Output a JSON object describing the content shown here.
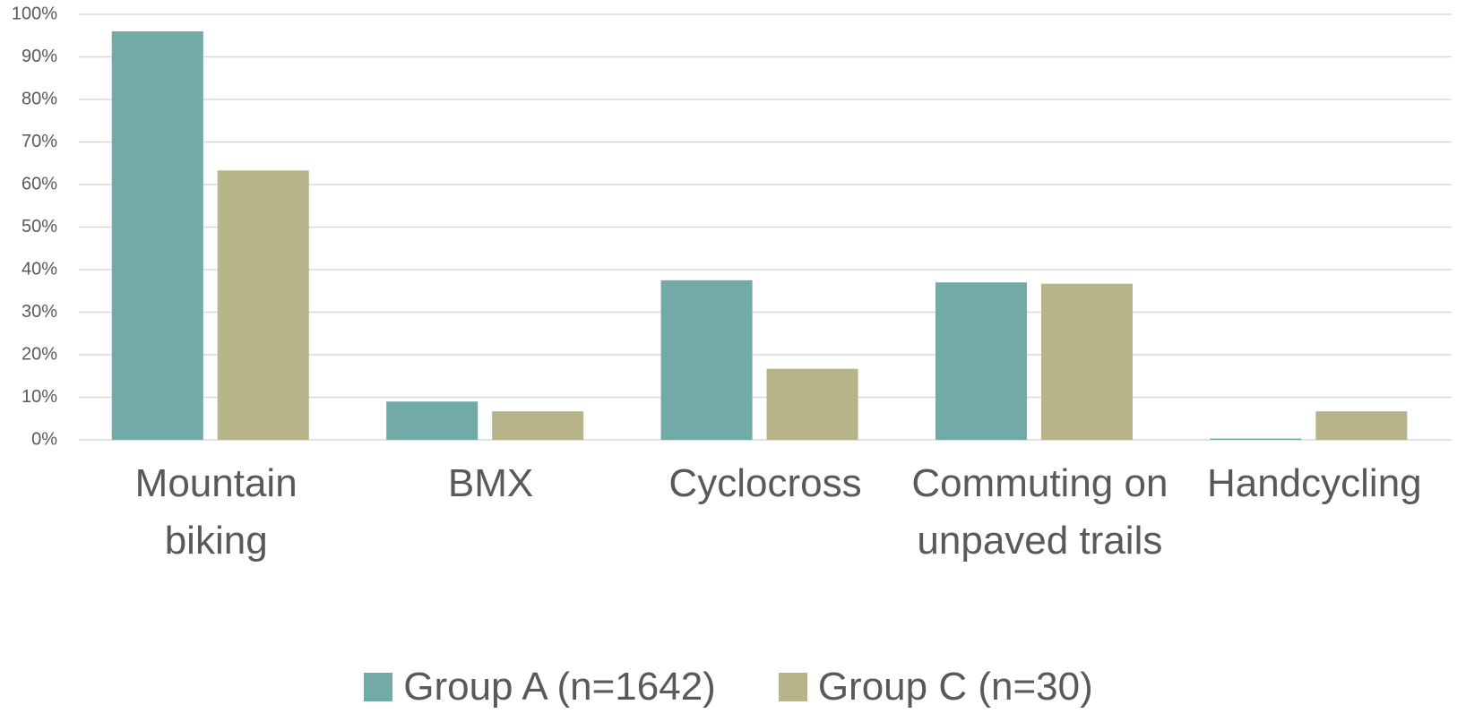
{
  "chart_data": {
    "type": "bar",
    "categories": [
      "Mountain biking",
      "BMX",
      "Cyclocross",
      "Commuting on unpaved trails",
      "Handcycling"
    ],
    "series": [
      {
        "name": "Group A (n=1642)",
        "color": "#72aaa8",
        "values": [
          96,
          9,
          37.5,
          37,
          0.3
        ]
      },
      {
        "name": "Group C (n=30)",
        "color": "#b8b48a",
        "values": [
          63.3,
          6.7,
          16.7,
          36.7,
          6.7
        ]
      }
    ],
    "ylim": [
      0,
      100
    ],
    "yticks": [
      {
        "value": 0,
        "label": "0%"
      },
      {
        "value": 10,
        "label": "10%"
      },
      {
        "value": 20,
        "label": "20%"
      },
      {
        "value": 30,
        "label": "30%"
      },
      {
        "value": 40,
        "label": "40%"
      },
      {
        "value": 50,
        "label": "50%"
      },
      {
        "value": 60,
        "label": "60%"
      },
      {
        "value": 70,
        "label": "70%"
      },
      {
        "value": 80,
        "label": "80%"
      },
      {
        "value": 90,
        "label": "90%"
      },
      {
        "value": 100,
        "label": "100%"
      }
    ],
    "grid": true
  }
}
